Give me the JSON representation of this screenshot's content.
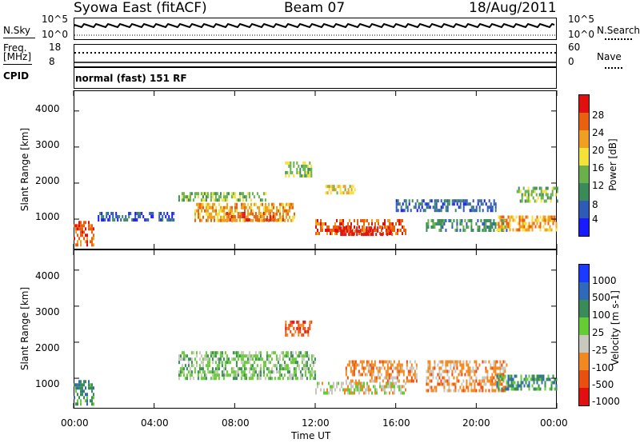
{
  "header": {
    "station": "Syowa East (fitACF)",
    "beam": "Beam 07",
    "date": "18/Aug/2011"
  },
  "noise_panel": {
    "left_label": "N.Sky",
    "right_label": "N.Search",
    "left_top": "10^5",
    "left_bottom": "10^0",
    "right_top": "10^5",
    "right_bottom": "10^0"
  },
  "freq_panel": {
    "left_label_1": "Freq.",
    "left_label_2": "[MHz]",
    "left_top": "18",
    "left_bottom": "8",
    "right_label": "Nave",
    "right_top": "60",
    "right_bottom": "0"
  },
  "cpid_panel": {
    "label": "CPID",
    "mode_text": "normal (fast) 151 RF"
  },
  "x_axis": {
    "label": "Time UT",
    "ticks": [
      "00:00",
      "04:00",
      "08:00",
      "12:00",
      "16:00",
      "20:00",
      "00:00"
    ]
  },
  "y_axis": {
    "label": "Slant Range [km]",
    "ticks": [
      "1000",
      "2000",
      "3000",
      "4000"
    ]
  },
  "power_scale": {
    "label": "Power [dB]",
    "ticks": [
      "4",
      "8",
      "12",
      "16",
      "20",
      "24",
      "28"
    ],
    "colors": [
      "#1a1aff",
      "#2e5ab8",
      "#3a8a5a",
      "#6ab04c",
      "#f2e23a",
      "#f0a020",
      "#e86010",
      "#e01010"
    ]
  },
  "velocity_scale": {
    "label": "Velocity [m s-1]",
    "ticks": [
      "1000",
      "500",
      "100",
      "25",
      "-25",
      "-100",
      "-500",
      "-1000"
    ],
    "colors": [
      "#1a3aff",
      "#2e6ab8",
      "#3a8a5a",
      "#66cc33",
      "#c8c8be",
      "#f08a20",
      "#e85010",
      "#e01010"
    ]
  },
  "chart_data": {
    "type": "heatmap",
    "x_range_hours": [
      0,
      24
    ],
    "y_range_km": [
      180,
      4550
    ],
    "power_regions": [
      {
        "t0": 0.0,
        "t1": 1.0,
        "r0": 300,
        "r1": 950,
        "level": 6
      },
      {
        "t0": 1.2,
        "t1": 5.0,
        "r0": 1000,
        "r1": 1200,
        "level": 1
      },
      {
        "t0": 5.2,
        "t1": 9.5,
        "r0": 1550,
        "r1": 1750,
        "level": 3
      },
      {
        "t0": 6.0,
        "t1": 11.0,
        "r0": 1000,
        "r1": 1450,
        "level": 5
      },
      {
        "t0": 7.5,
        "t1": 10.5,
        "r0": 1000,
        "r1": 1200,
        "level": 6
      },
      {
        "t0": 10.5,
        "t1": 11.8,
        "r0": 2200,
        "r1": 2600,
        "level": 3
      },
      {
        "t0": 12.0,
        "t1": 16.5,
        "r0": 600,
        "r1": 1000,
        "level": 6
      },
      {
        "t0": 13.0,
        "t1": 15.8,
        "r0": 600,
        "r1": 800,
        "level": 7
      },
      {
        "t0": 12.5,
        "t1": 14.0,
        "r0": 1750,
        "r1": 1950,
        "level": 4
      },
      {
        "t0": 16.0,
        "t1": 21.0,
        "r0": 1200,
        "r1": 1550,
        "level": 1
      },
      {
        "t0": 17.5,
        "t1": 21.5,
        "r0": 700,
        "r1": 1000,
        "level": 2
      },
      {
        "t0": 21.0,
        "t1": 24.0,
        "r0": 700,
        "r1": 1100,
        "level": 5
      },
      {
        "t0": 22.0,
        "t1": 24.0,
        "r0": 1500,
        "r1": 1900,
        "level": 3
      }
    ],
    "velocity_regions": [
      {
        "t0": 0.0,
        "t1": 1.0,
        "r0": 300,
        "r1": 950,
        "level": 5
      },
      {
        "t0": 5.2,
        "t1": 12.0,
        "r0": 1000,
        "r1": 1750,
        "level": 4
      },
      {
        "t0": 12.0,
        "t1": 16.5,
        "r0": 600,
        "r1": 900,
        "level": 3
      },
      {
        "t0": 13.5,
        "t1": 17.0,
        "r0": 900,
        "r1": 1500,
        "level": 2
      },
      {
        "t0": 17.5,
        "t1": 21.5,
        "r0": 700,
        "r1": 1500,
        "level": 2
      },
      {
        "t0": 21.0,
        "t1": 24.0,
        "r0": 700,
        "r1": 1100,
        "level": 5
      },
      {
        "t0": 10.5,
        "t1": 11.8,
        "r0": 2200,
        "r1": 2600,
        "level": 1
      }
    ]
  }
}
